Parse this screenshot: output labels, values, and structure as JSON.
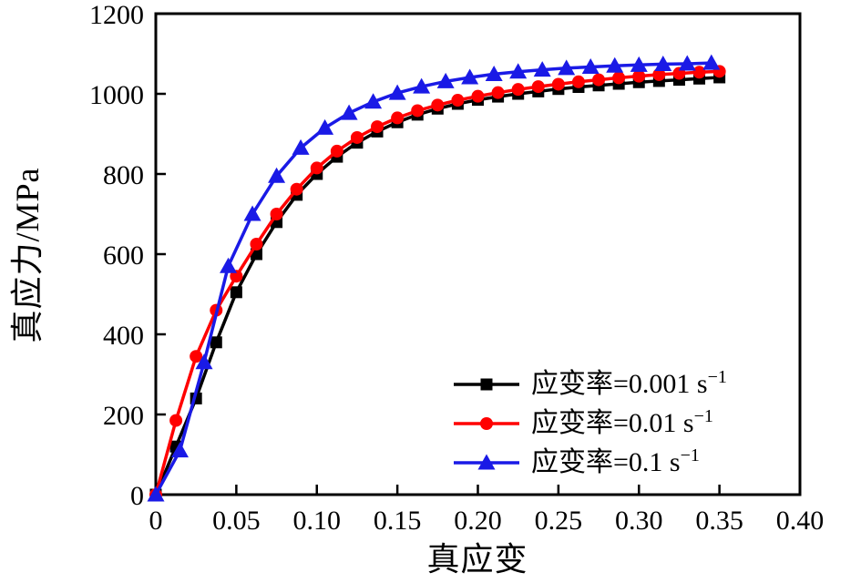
{
  "figure": {
    "background": "#ffffff",
    "frame_color": "#000000"
  },
  "chart_data": {
    "type": "line",
    "title": "",
    "xlabel": "真应变",
    "ylabel": "真应力/MPa",
    "xlim": [
      0,
      0.4
    ],
    "ylim": [
      0,
      1200
    ],
    "grid": false,
    "legend_position": "lower right",
    "xticks": {
      "values": [
        0,
        0.05,
        0.1,
        0.15,
        0.2,
        0.25,
        0.3,
        0.35,
        0.4
      ],
      "labels": [
        "0",
        "0.05",
        "0.10",
        "0.15",
        "0.20",
        "0.25",
        "0.30",
        "0.35",
        "0.40"
      ]
    },
    "yticks": {
      "values": [
        0,
        200,
        400,
        600,
        800,
        1000,
        1200
      ],
      "labels": [
        "0",
        "200",
        "400",
        "600",
        "800",
        "1000",
        "1200"
      ]
    },
    "series": [
      {
        "name": "应变率=0.001 s⁻¹",
        "label": "应变率=0.001 s",
        "exponent": "−1",
        "color": "#000000",
        "marker": "square",
        "x": [
          0,
          0.0125,
          0.025,
          0.0375,
          0.05,
          0.0625,
          0.075,
          0.0875,
          0.1,
          0.1125,
          0.125,
          0.1375,
          0.15,
          0.1625,
          0.175,
          0.1875,
          0.2,
          0.2125,
          0.225,
          0.2375,
          0.25,
          0.2625,
          0.275,
          0.2875,
          0.3,
          0.3125,
          0.325,
          0.3375,
          0.35
        ],
        "y": [
          0,
          120,
          240,
          380,
          505,
          600,
          680,
          748,
          800,
          843,
          878,
          906,
          929,
          948,
          963,
          975,
          985,
          993,
          1000,
          1006,
          1012,
          1017,
          1021,
          1025,
          1029,
          1032,
          1035,
          1038,
          1041
        ]
      },
      {
        "name": "应变率=0.01 s⁻¹",
        "label": "应变率=0.01 s",
        "exponent": "−1",
        "color": "#ff0000",
        "marker": "circle",
        "x": [
          0,
          0.0125,
          0.025,
          0.0375,
          0.05,
          0.0625,
          0.075,
          0.0875,
          0.1,
          0.1125,
          0.125,
          0.1375,
          0.15,
          0.1625,
          0.175,
          0.1875,
          0.2,
          0.2125,
          0.225,
          0.2375,
          0.25,
          0.2625,
          0.275,
          0.2875,
          0.3,
          0.3125,
          0.325,
          0.3375,
          0.35
        ],
        "y": [
          0,
          185,
          345,
          460,
          545,
          625,
          700,
          762,
          815,
          857,
          891,
          918,
          940,
          958,
          972,
          984,
          994,
          1003,
          1011,
          1018,
          1024,
          1030,
          1035,
          1040,
          1044,
          1048,
          1051,
          1054,
          1056
        ]
      },
      {
        "name": "应变率=0.1 s⁻¹",
        "label": "应变率=0.1 s",
        "exponent": "−1",
        "color": "#1a1ae6",
        "marker": "triangle",
        "x": [
          0,
          0.015,
          0.03,
          0.045,
          0.06,
          0.075,
          0.09,
          0.105,
          0.12,
          0.135,
          0.15,
          0.165,
          0.18,
          0.195,
          0.21,
          0.225,
          0.24,
          0.255,
          0.27,
          0.285,
          0.3,
          0.315,
          0.33,
          0.345
        ],
        "y": [
          0,
          110,
          330,
          570,
          700,
          795,
          865,
          915,
          952,
          980,
          1002,
          1018,
          1031,
          1041,
          1049,
          1055,
          1060,
          1064,
          1067,
          1070,
          1072,
          1074,
          1075,
          1077
        ]
      }
    ]
  }
}
